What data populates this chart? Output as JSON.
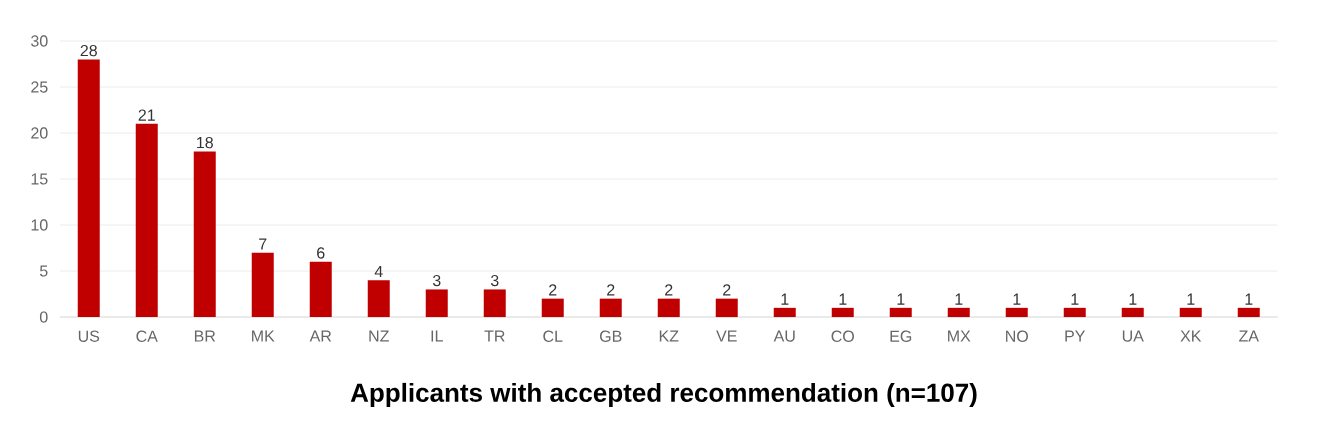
{
  "chart_data": {
    "type": "bar",
    "title": "Applicants with accepted recommendation (n=107)",
    "categories": [
      "US",
      "CA",
      "BR",
      "MK",
      "AR",
      "NZ",
      "IL",
      "TR",
      "CL",
      "GB",
      "KZ",
      "VE",
      "AU",
      "CO",
      "EG",
      "MX",
      "NO",
      "PY",
      "UA",
      "XK",
      "ZA"
    ],
    "values": [
      28,
      21,
      18,
      7,
      6,
      4,
      3,
      3,
      2,
      2,
      2,
      2,
      1,
      1,
      1,
      1,
      1,
      1,
      1,
      1,
      1
    ],
    "color": "#c00000",
    "ylim": [
      0,
      30
    ],
    "yticks": [
      0,
      5,
      10,
      15,
      20,
      25,
      30
    ],
    "grid": "y",
    "data_labels": true
  }
}
